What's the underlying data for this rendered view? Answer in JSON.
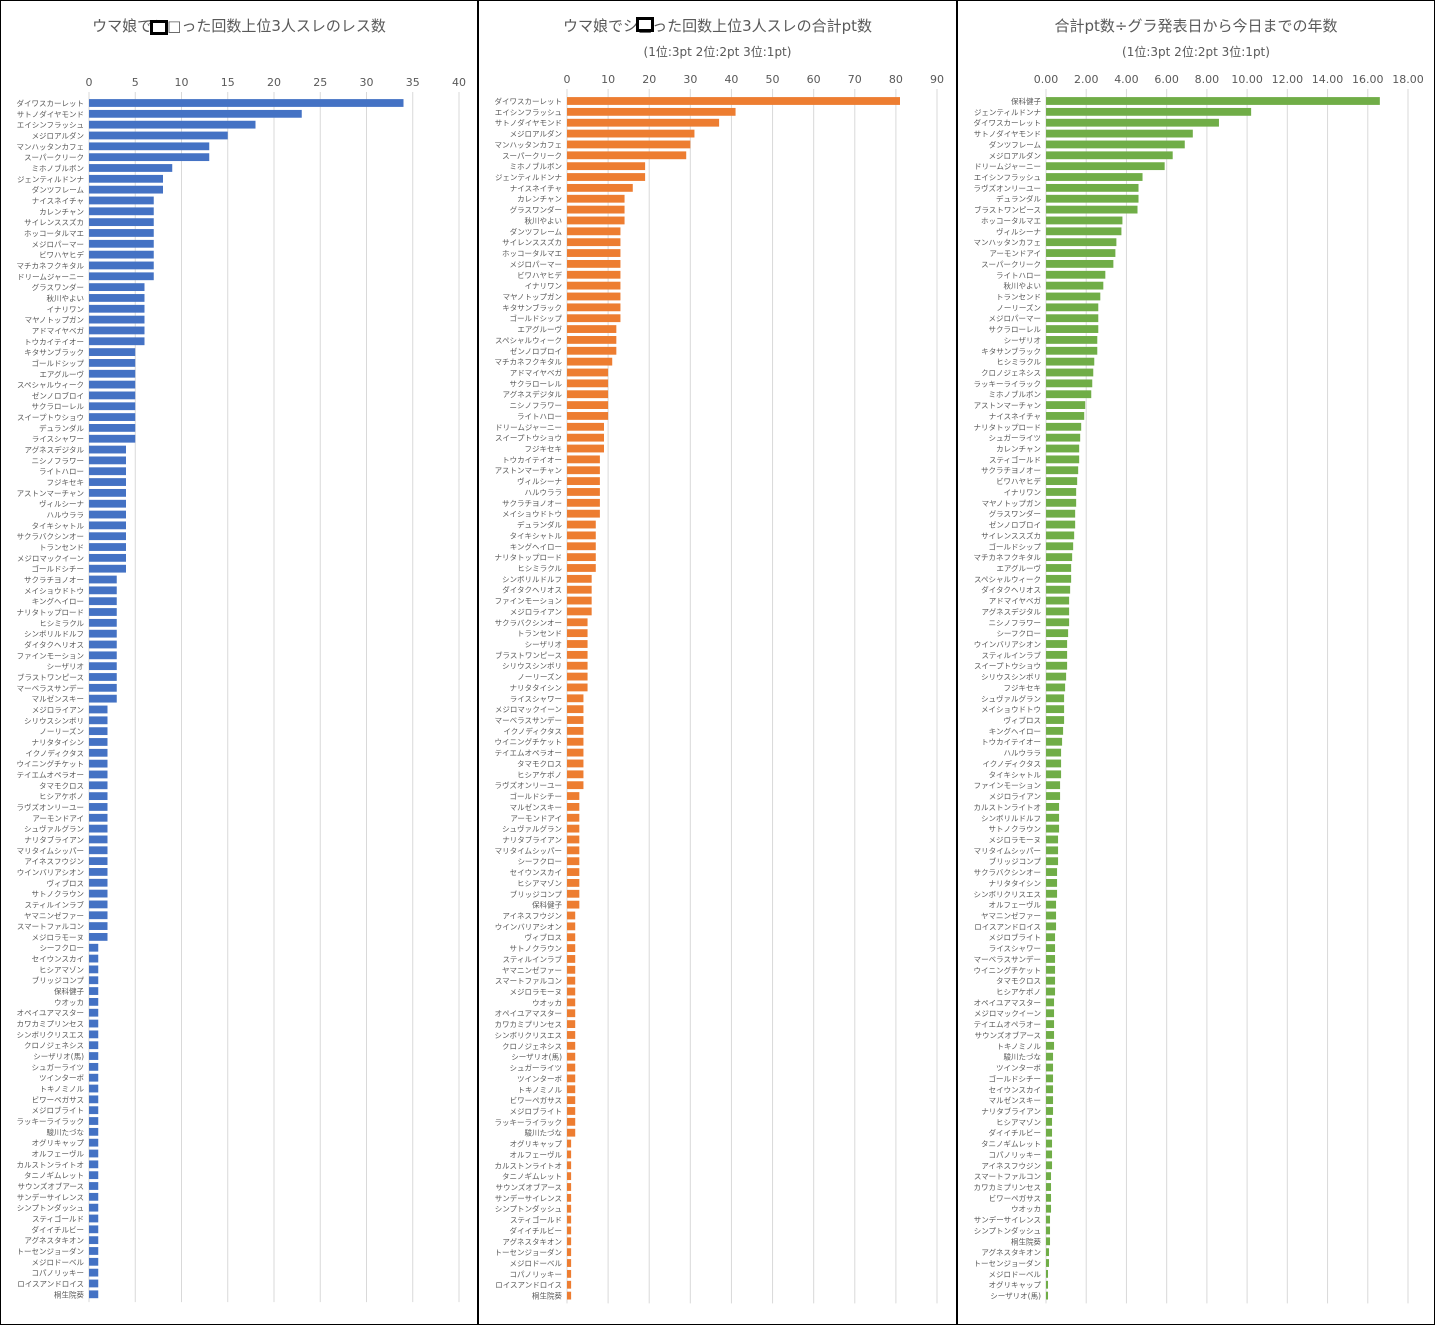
{
  "chart_data": [
    {
      "type": "bar",
      "orientation": "horizontal",
      "title": "ウマ娘でシ□った回数上位3人スレのレス数",
      "subtitle": "",
      "color": "#4472C4",
      "xlim": [
        0,
        40
      ],
      "xticks": [
        0,
        5,
        10,
        15,
        20,
        25,
        30,
        35,
        40
      ],
      "tick_decimals": 0,
      "categories": [
        "ダイワスカーレット",
        "サトノダイヤモンド",
        "エイシンフラッシュ",
        "メジロアルダン",
        "マンハッタンカフェ",
        "スーパークリーク",
        "ミホノブルボン",
        "ジェンティルドンナ",
        "ダンツフレーム",
        "ナイスネイチャ",
        "カレンチャン",
        "サイレンススズカ",
        "ホッコータルマエ",
        "メジロパーマー",
        "ビワハヤヒデ",
        "マチカネフクキタル",
        "ドリームジャーニー",
        "グラスワンダー",
        "秋川やよい",
        "イナリワン",
        "マヤノトップガン",
        "アドマイヤベガ",
        "トウカイテイオー",
        "キタサンブラック",
        "ゴールドシップ",
        "エアグルーヴ",
        "スペシャルウィーク",
        "ゼンノロブロイ",
        "サクラローレル",
        "スイープトウショウ",
        "デュランダル",
        "ライスシャワー",
        "アグネスデジタル",
        "ニシノフラワー",
        "ライトハロー",
        "フジキセキ",
        "アストンマーチャン",
        "ヴィルシーナ",
        "ハルウララ",
        "タイキシャトル",
        "サクラバクシンオー",
        "トランセンド",
        "メジロマックイーン",
        "ゴールドシチー",
        "サクラチヨノオー",
        "メイショウドトウ",
        "キングヘイロー",
        "ナリタトップロード",
        "ヒシミラクル",
        "シンボリルドルフ",
        "ダイタクヘリオス",
        "ファインモーション",
        "シーザリオ",
        "ブラストワンピース",
        "マーベラスサンデー",
        "マルゼンスキー",
        "メジロライアン",
        "シリウスシンボリ",
        "ノーリーズン",
        "ナリタタイシン",
        "イクノディクタス",
        "ウイニングチケット",
        "テイエムオペラオー",
        "タマモクロス",
        "ヒシアケボノ",
        "ラヴズオンリーユー",
        "アーモンドアイ",
        "シュヴァルグラン",
        "ナリタブライアン",
        "マリタイムシッパー",
        "アイネスフウジン",
        "ウインバリアシオン",
        "ヴィブロス",
        "サトノクラウン",
        "スティルインラブ",
        "ヤマニンゼファー",
        "スマートファルコン",
        "メジロラモーヌ",
        "シーフクロー",
        "セイウンスカイ",
        "ヒシアマゾン",
        "ブリッジコンプ",
        "保科健子",
        "ウオッカ",
        "オペイユアマスター",
        "カワカミプリンセス",
        "シンボリクリスエス",
        "クロノジェネシス",
        "シーザリオ(馬)",
        "シュガーライツ",
        "ツインターボ",
        "トキノミノル",
        "ビワーペガサス",
        "メジロブライト",
        "ラッキーライラック",
        "駿川たづな",
        "オグリキャップ",
        "オルフェーヴル",
        "カルストンライトオ",
        "タニノギムレット",
        "サウンズオブアース",
        "サンデーサイレンス",
        "シンプトンダッシュ",
        "スティゴールド",
        "ダイイチルビー",
        "アグネスタキオン",
        "トーセンジョーダン",
        "メジロドーベル",
        "コパノリッキー",
        "ロイスアンドロイス",
        "桐生院葵"
      ],
      "values": [
        34,
        23,
        18,
        15,
        13,
        13,
        9,
        8,
        8,
        7,
        7,
        7,
        7,
        7,
        7,
        7,
        7,
        6,
        6,
        6,
        6,
        6,
        6,
        5,
        5,
        5,
        5,
        5,
        5,
        5,
        5,
        5,
        4,
        4,
        4,
        4,
        4,
        4,
        4,
        4,
        4,
        4,
        4,
        4,
        3,
        3,
        3,
        3,
        3,
        3,
        3,
        3,
        3,
        3,
        3,
        3,
        2,
        2,
        2,
        2,
        2,
        2,
        2,
        2,
        2,
        2,
        2,
        2,
        2,
        2,
        2,
        2,
        2,
        2,
        2,
        2,
        2,
        2,
        1,
        1,
        1,
        1,
        1,
        1,
        1,
        1,
        1,
        1,
        1,
        1,
        1,
        1,
        1,
        1,
        1,
        1,
        1,
        1,
        1,
        1,
        1,
        1,
        1,
        1,
        1,
        1,
        1,
        1,
        1,
        1,
        1
      ]
    },
    {
      "type": "bar",
      "orientation": "horizontal",
      "title": "ウマ娘でシ□った回数上位3人スレの合計pt数",
      "subtitle": "(1位:3pt 2位:2pt 3位:1pt)",
      "color": "#ED7D31",
      "xlim": [
        0,
        90
      ],
      "xticks": [
        0,
        10,
        20,
        30,
        40,
        50,
        60,
        70,
        80,
        90
      ],
      "tick_decimals": 0,
      "categories": [
        "ダイワスカーレット",
        "エイシンフラッシュ",
        "サトノダイヤモンド",
        "メジロアルダン",
        "マンハッタンカフェ",
        "スーパークリーク",
        "ミホノブルボン",
        "ジェンティルドンナ",
        "ナイスネイチャ",
        "カレンチャン",
        "グラスワンダー",
        "秋川やよい",
        "ダンツフレーム",
        "サイレンススズカ",
        "ホッコータルマエ",
        "メジロパーマー",
        "ビワハヤヒデ",
        "イナリワン",
        "マヤノトップガン",
        "キタサンブラック",
        "ゴールドシップ",
        "エアグルーヴ",
        "スペシャルウィーク",
        "ゼンノロブロイ",
        "マチカネフクキタル",
        "アドマイヤベガ",
        "サクラローレル",
        "アグネスデジタル",
        "ニシノフラワー",
        "ライトハロー",
        "ドリームジャーニー",
        "スイープトウショウ",
        "フジキセキ",
        "トウカイテイオー",
        "アストンマーチャン",
        "ヴィルシーナ",
        "ハルウララ",
        "サクラチヨノオー",
        "メイショウドトウ",
        "デュランダル",
        "タイキシャトル",
        "キングヘイロー",
        "ナリタトップロード",
        "ヒシミラクル",
        "シンボリルドルフ",
        "ダイタクヘリオス",
        "ファインモーション",
        "メジロライアン",
        "サクラバクシンオー",
        "トランセンド",
        "シーザリオ",
        "ブラストワンピース",
        "シリウスシンボリ",
        "ノーリーズン",
        "ナリタタイシン",
        "ライスシャワー",
        "メジロマックイーン",
        "マーベラスサンデー",
        "イクノディクタス",
        "ウイニングチケット",
        "テイエムオペラオー",
        "タマモクロス",
        "ヒシアケボノ",
        "ラヴズオンリーユー",
        "ゴールドシチー",
        "マルゼンスキー",
        "アーモンドアイ",
        "シュヴァルグラン",
        "ナリタブライアン",
        "マリタイムシッパー",
        "シーフクロー",
        "セイウンスカイ",
        "ヒシアマゾン",
        "ブリッジコンプ",
        "保科健子",
        "アイネスフウジン",
        "ウインバリアシオン",
        "ヴィブロス",
        "サトノクラウン",
        "スティルインラブ",
        "ヤマニンゼファー",
        "スマートファルコン",
        "メジロラモーヌ",
        "ウオッカ",
        "オペイユアマスター",
        "カワカミプリンセス",
        "シンボリクリスエス",
        "クロノジェネシス",
        "シーザリオ(馬)",
        "シュガーライツ",
        "ツインターボ",
        "トキノミノル",
        "ビワーペガサス",
        "メジロブライト",
        "ラッキーライラック",
        "駿川たづな",
        "オグリキャップ",
        "オルフェーヴル",
        "カルストンライトオ",
        "タニノギムレット",
        "サウンズオブアース",
        "サンデーサイレンス",
        "シンプトンダッシュ",
        "スティゴールド",
        "ダイイチルビー",
        "アグネスタキオン",
        "トーセンジョーダン",
        "メジロドーベル",
        "コパノリッキー",
        "ロイスアンドロイス",
        "桐生院葵"
      ],
      "values": [
        81,
        41,
        37,
        31,
        30,
        29,
        19,
        19,
        16,
        14,
        14,
        14,
        13,
        13,
        13,
        13,
        13,
        13,
        13,
        13,
        13,
        12,
        12,
        12,
        11,
        10,
        10,
        10,
        10,
        10,
        9,
        9,
        9,
        8,
        8,
        8,
        8,
        8,
        8,
        7,
        7,
        7,
        7,
        7,
        6,
        6,
        6,
        6,
        5,
        5,
        5,
        5,
        5,
        5,
        5,
        4,
        4,
        4,
        4,
        4,
        4,
        4,
        4,
        4,
        3,
        3,
        3,
        3,
        3,
        3,
        3,
        3,
        3,
        3,
        3,
        2,
        2,
        2,
        2,
        2,
        2,
        2,
        2,
        2,
        2,
        2,
        2,
        2,
        2,
        2,
        2,
        2,
        2,
        2,
        2,
        2,
        1,
        1,
        1,
        1,
        1,
        1,
        1,
        1,
        1,
        1,
        1,
        1,
        1,
        1,
        1
      ]
    },
    {
      "type": "bar",
      "orientation": "horizontal",
      "title": "合計pt数÷グラ発表日から今日までの年数",
      "subtitle": "(1位:3pt 2位:2pt 3位:1pt)",
      "color": "#70AD47",
      "xlim": [
        0,
        18
      ],
      "xticks": [
        0,
        2,
        4,
        6,
        8,
        10,
        12,
        14,
        16,
        18
      ],
      "tick_decimals": 2,
      "categories": [
        "保科健子",
        "ジェンティルドンナ",
        "ダイワスカーレット",
        "サトノダイヤモンド",
        "ダンツフレーム",
        "メジロアルダン",
        "ドリームジャーニー",
        "エイシンフラッシュ",
        "ラヴズオンリーユー",
        "デュランダル",
        "ブラストワンピース",
        "ホッコータルマエ",
        "ヴィルシーナ",
        "マンハッタンカフェ",
        "アーモンドアイ",
        "スーパークリーク",
        "ライトハロー",
        "秋川やよい",
        "トランセンド",
        "ノーリーズン",
        "メジロパーマー",
        "サクラローレル",
        "シーザリオ",
        "キタサンブラック",
        "ヒシミラクル",
        "クロノジェネシス",
        "ラッキーライラック",
        "ミホノブルボン",
        "アストンマーチャン",
        "ナイスネイチャ",
        "ナリタトップロード",
        "シュガーライツ",
        "カレンチャン",
        "スティゴールド",
        "サクラチヨノオー",
        "ビワハヤヒデ",
        "イナリワン",
        "マヤノトップガン",
        "グラスワンダー",
        "ゼンノロブロイ",
        "サイレンススズカ",
        "ゴールドシップ",
        "マチカネフクキタル",
        "エアグルーヴ",
        "スペシャルウィーク",
        "ダイタクヘリオス",
        "アドマイヤベガ",
        "アグネスデジタル",
        "ニシノフラワー",
        "シーフクロー",
        "ウインバリアシオン",
        "スティルインラブ",
        "スイープトウショウ",
        "シリウスシンボリ",
        "フジキセキ",
        "シュヴァルグラン",
        "メイショウドトウ",
        "ヴィブロス",
        "キングヘイロー",
        "トウカイテイオー",
        "ハルウララ",
        "イクノディクタス",
        "タイキシャトル",
        "ファインモーション",
        "メジロライアン",
        "カルストンライトオ",
        "シンボリルドルフ",
        "サトノクラウン",
        "メジロラモーヌ",
        "マリタイムシッパー",
        "ブリッジコンプ",
        "サクラバクシンオー",
        "ナリタタイシン",
        "シンボリクリスエス",
        "オルフェーヴル",
        "ヤマニンゼファー",
        "ロイスアンドロイス",
        "メジロブライト",
        "ライスシャワー",
        "マーベラスサンデー",
        "ウイニングチケット",
        "タマモクロス",
        "ヒシアケボノ",
        "オペイユアマスター",
        "メジロマックイーン",
        "テイエムオペラオー",
        "サウンズオブアース",
        "トキノミノル",
        "駿川たづな",
        "ツインターボ",
        "ゴールドシチー",
        "セイウンスカイ",
        "マルゼンスキー",
        "ナリタブライアン",
        "ヒシアマゾン",
        "ダイイチルビー",
        "タニノギムレット",
        "コパノリッキー",
        "アイネスフウジン",
        "スマートファルコン",
        "カワカミプリンセス",
        "ビワーペガサス",
        "ウオッカ",
        "サンデーサイレンス",
        "シンプトンダッシュ",
        "桐生院葵",
        "アグネスタキオン",
        "トーセンジョーダン",
        "メジロドーベル",
        "オグリキャップ",
        "シーザリオ(馬)"
      ],
      "values": [
        16.6,
        10.2,
        8.6,
        7.3,
        6.9,
        6.3,
        5.9,
        4.8,
        4.6,
        4.6,
        4.55,
        3.8,
        3.75,
        3.5,
        3.45,
        3.35,
        2.95,
        2.85,
        2.7,
        2.6,
        2.6,
        2.6,
        2.55,
        2.55,
        2.4,
        2.35,
        2.3,
        2.25,
        1.95,
        1.9,
        1.75,
        1.7,
        1.65,
        1.65,
        1.6,
        1.55,
        1.5,
        1.5,
        1.45,
        1.45,
        1.4,
        1.35,
        1.3,
        1.25,
        1.25,
        1.2,
        1.15,
        1.15,
        1.15,
        1.1,
        1.05,
        1.05,
        1.05,
        1.0,
        0.95,
        0.9,
        0.9,
        0.9,
        0.85,
        0.8,
        0.75,
        0.75,
        0.75,
        0.7,
        0.7,
        0.65,
        0.65,
        0.65,
        0.6,
        0.6,
        0.6,
        0.55,
        0.55,
        0.55,
        0.5,
        0.5,
        0.5,
        0.45,
        0.45,
        0.45,
        0.45,
        0.45,
        0.45,
        0.4,
        0.4,
        0.4,
        0.4,
        0.4,
        0.35,
        0.35,
        0.35,
        0.35,
        0.35,
        0.35,
        0.3,
        0.3,
        0.3,
        0.3,
        0.3,
        0.25,
        0.25,
        0.25,
        0.25,
        0.2,
        0.2,
        0.2,
        0.15,
        0.15,
        0.1,
        0.1,
        0.1
      ]
    }
  ]
}
